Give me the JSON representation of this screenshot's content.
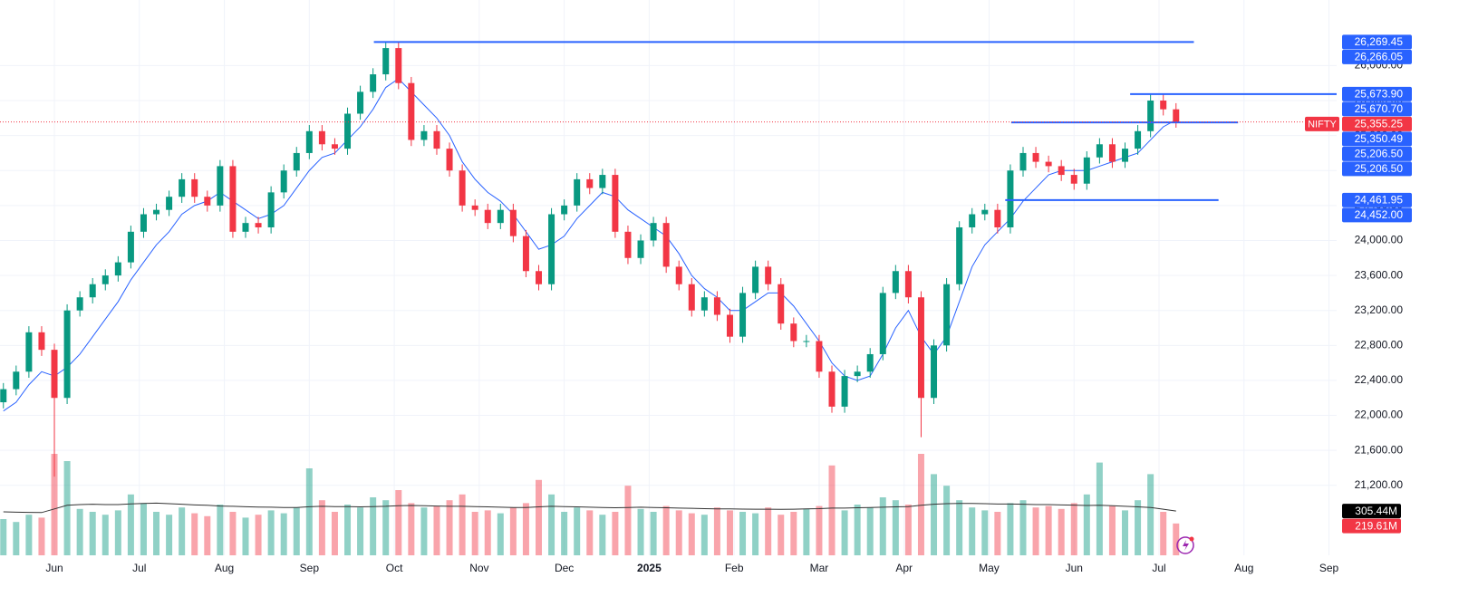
{
  "chart_data": {
    "type": "candlestick",
    "symbol": "NIFTY",
    "up_color": "#089981",
    "down_color": "#f23645",
    "grid": true,
    "x": [
      0.4,
      0.55,
      0.7,
      0.85,
      1,
      1.15,
      1.3,
      1.45,
      1.6,
      1.75,
      1.9,
      2.05,
      2.2,
      2.35,
      2.5,
      2.65,
      2.8,
      2.95,
      3.1,
      3.25,
      3.4,
      3.55,
      3.7,
      3.85,
      4,
      4.15,
      4.3,
      4.45,
      4.6,
      4.75,
      4.9,
      5.05,
      5.2,
      5.35,
      5.5,
      5.65,
      5.8,
      5.95,
      6.1,
      6.25,
      6.4,
      6.55,
      6.7,
      6.85,
      7,
      7.15,
      7.3,
      7.45,
      7.6,
      7.75,
      7.9,
      8.05,
      8.2,
      8.35,
      8.5,
      8.65,
      8.8,
      8.95,
      9.1,
      9.25,
      9.4,
      9.55,
      9.7,
      9.85,
      10,
      10.15,
      10.3,
      10.45,
      10.6,
      10.75,
      10.9,
      11.05,
      11.2,
      11.35,
      11.5,
      11.65,
      11.8,
      11.95,
      12.1,
      12.25,
      12.4,
      12.55,
      12.7,
      12.85,
      13,
      13.15,
      13.3,
      13.45,
      13.6,
      13.75,
      13.9,
      14.05,
      14.2
    ],
    "open": [
      22150,
      22300,
      22500,
      22950,
      22750,
      22200,
      23200,
      23350,
      23500,
      23600,
      23750,
      24100,
      24300,
      24350,
      24500,
      24700,
      24500,
      24400,
      24850,
      24100,
      24200,
      24150,
      24550,
      24800,
      25000,
      25250,
      25100,
      25050,
      25450,
      25700,
      25900,
      26200,
      25800,
      25150,
      25250,
      25050,
      24800,
      24400,
      24350,
      24200,
      24350,
      24050,
      23650,
      23500,
      24300,
      24400,
      24700,
      24600,
      24750,
      24100,
      23800,
      24000,
      24200,
      23700,
      23500,
      23200,
      23350,
      23150,
      22900,
      23400,
      23700,
      23500,
      23050,
      22850,
      22850,
      22500,
      22100,
      22450,
      22500,
      22700,
      23400,
      23650,
      23350,
      22200,
      22800,
      23500,
      24150,
      24300,
      24350,
      24150,
      24800,
      25000,
      24900,
      24850,
      24750,
      24650,
      24950,
      25100,
      24900,
      25050,
      25250,
      25600,
      25500
    ],
    "high": [
      22370,
      22570,
      23020,
      23020,
      22820,
      23270,
      23420,
      23570,
      23670,
      23820,
      24170,
      24370,
      24420,
      24570,
      24770,
      24770,
      24570,
      24920,
      24920,
      24270,
      24270,
      24620,
      24870,
      25070,
      25320,
      25320,
      25170,
      25520,
      25770,
      25970,
      26277,
      26270,
      25870,
      25320,
      25320,
      25120,
      24870,
      24470,
      24420,
      24420,
      24420,
      24120,
      23720,
      24370,
      24470,
      24770,
      24770,
      24820,
      24820,
      24170,
      24070,
      24270,
      24270,
      23770,
      23570,
      23420,
      23420,
      23220,
      23470,
      23770,
      23770,
      23570,
      23120,
      22920,
      22920,
      22570,
      22520,
      22570,
      22770,
      23470,
      23720,
      23720,
      23420,
      22870,
      23570,
      24220,
      24370,
      24420,
      24420,
      24870,
      25070,
      25070,
      24970,
      24920,
      24820,
      25020,
      25170,
      25170,
      25120,
      25320,
      25670,
      25670,
      25570
    ],
    "low": [
      22080,
      22230,
      22430,
      22680,
      21300,
      22130,
      23130,
      23280,
      23430,
      23530,
      23680,
      24030,
      24230,
      24280,
      24430,
      24430,
      24330,
      24330,
      24030,
      24030,
      24080,
      24080,
      24480,
      24730,
      24930,
      25030,
      24980,
      24980,
      25380,
      25630,
      25830,
      25730,
      25080,
      25080,
      24980,
      24730,
      24330,
      24280,
      24130,
      24130,
      23980,
      23580,
      23430,
      23430,
      24230,
      24330,
      24530,
      24530,
      24030,
      23730,
      23730,
      23930,
      23630,
      23430,
      23130,
      23130,
      23080,
      22830,
      22830,
      23330,
      23430,
      22980,
      22780,
      22780,
      22430,
      22030,
      22030,
      22380,
      22430,
      22630,
      23330,
      23280,
      21750,
      22130,
      22730,
      23430,
      24080,
      24230,
      24080,
      24080,
      24730,
      24830,
      24780,
      24680,
      24580,
      24580,
      24880,
      24830,
      24830,
      24980,
      25180,
      25430,
      25290
    ],
    "close": [
      22300,
      22500,
      22950,
      22750,
      22200,
      23200,
      23350,
      23500,
      23600,
      23750,
      24100,
      24300,
      24350,
      24500,
      24700,
      24500,
      24400,
      24850,
      24100,
      24200,
      24150,
      24550,
      24800,
      25000,
      25250,
      25100,
      25050,
      25450,
      25700,
      25900,
      26200,
      25800,
      25150,
      25250,
      25050,
      24800,
      24400,
      24350,
      24200,
      24350,
      24050,
      23650,
      23500,
      24300,
      24400,
      24700,
      24600,
      24750,
      24100,
      23800,
      24000,
      24200,
      23700,
      23500,
      23200,
      23350,
      23150,
      22900,
      23400,
      23700,
      23500,
      23050,
      22850,
      22850,
      22500,
      22100,
      22450,
      22500,
      22700,
      23400,
      23650,
      23350,
      22200,
      22800,
      23500,
      24150,
      24300,
      24350,
      24150,
      24800,
      25000,
      24900,
      24850,
      24750,
      24650,
      24950,
      25100,
      24900,
      25050,
      25250,
      25600,
      25500,
      25355
    ],
    "ma": {
      "color": "#2962ff",
      "values": [
        22050,
        22150,
        22350,
        22500,
        22450,
        22550,
        22700,
        22900,
        23100,
        23300,
        23550,
        23750,
        23950,
        24100,
        24300,
        24400,
        24450,
        24550,
        24450,
        24350,
        24250,
        24300,
        24400,
        24600,
        24800,
        24950,
        25000,
        25150,
        25300,
        25500,
        25750,
        25850,
        25700,
        25550,
        25400,
        25200,
        24900,
        24700,
        24550,
        24450,
        24300,
        24100,
        23900,
        23950,
        24050,
        24250,
        24400,
        24550,
        24500,
        24350,
        24250,
        24150,
        24050,
        23850,
        23600,
        23450,
        23350,
        23200,
        23200,
        23300,
        23400,
        23400,
        23250,
        23050,
        22850,
        22600,
        22450,
        22400,
        22450,
        22700,
        23000,
        23200,
        22900,
        22700,
        22900,
        23300,
        23700,
        23950,
        24100,
        24250,
        24450,
        24600,
        24750,
        24800,
        24800,
        24800,
        24850,
        24900,
        24950,
        25000,
        25150,
        25300,
        25380
      ]
    },
    "volume": {
      "values": [
        250,
        230,
        280,
        260,
        700,
        650,
        320,
        300,
        280,
        310,
        420,
        360,
        300,
        280,
        330,
        290,
        270,
        350,
        300,
        260,
        280,
        310,
        290,
        330,
        600,
        380,
        300,
        350,
        330,
        400,
        380,
        450,
        360,
        330,
        340,
        380,
        420,
        300,
        310,
        290,
        330,
        360,
        520,
        420,
        300,
        330,
        310,
        280,
        300,
        480,
        320,
        300,
        340,
        310,
        290,
        280,
        330,
        310,
        300,
        290,
        330,
        280,
        300,
        320,
        340,
        620,
        310,
        350,
        330,
        400,
        380,
        350,
        700,
        560,
        480,
        380,
        330,
        310,
        300,
        360,
        380,
        330,
        340,
        320,
        360,
        420,
        640,
        340,
        310,
        380,
        560,
        300,
        219.61
      ],
      "ma_values": [
        300,
        298,
        296,
        295,
        320,
        345,
        350,
        352,
        350,
        350,
        355,
        358,
        360,
        356,
        352,
        348,
        345,
        340,
        338,
        335,
        333,
        332,
        330,
        330,
        335,
        338,
        336,
        336,
        334,
        336,
        338,
        342,
        344,
        342,
        340,
        338,
        338,
        336,
        334,
        332,
        330,
        330,
        334,
        338,
        336,
        334,
        332,
        330,
        328,
        330,
        332,
        330,
        328,
        326,
        324,
        322,
        320,
        320,
        319,
        318,
        318,
        317,
        318,
        320,
        322,
        326,
        326,
        328,
        330,
        332,
        334,
        336,
        345,
        352,
        356,
        358,
        358,
        356,
        354,
        354,
        352,
        350,
        350,
        348,
        346,
        344,
        345,
        342,
        338,
        334,
        330,
        318,
        305.44
      ],
      "ma_color": "#333333"
    },
    "volume_ylim": [
      0,
      900
    ],
    "volume_labels": [
      {
        "value": 305.44,
        "label": "305.44M",
        "color": "#000000"
      },
      {
        "value": 219.61,
        "label": "219.61M",
        "color": "#f23645"
      }
    ],
    "xlim": [
      0.36,
      16.09
    ],
    "xticks": [
      {
        "value": 1,
        "label": "Jun"
      },
      {
        "value": 2,
        "label": "Jul"
      },
      {
        "value": 3,
        "label": "Aug"
      },
      {
        "value": 4,
        "label": "Sep"
      },
      {
        "value": 5,
        "label": "Oct"
      },
      {
        "value": 6,
        "label": "Nov"
      },
      {
        "value": 7,
        "label": "Dec"
      },
      {
        "value": 8,
        "label": "2025"
      },
      {
        "value": 9,
        "label": "Feb"
      },
      {
        "value": 10,
        "label": "Mar"
      },
      {
        "value": 11,
        "label": "Apr"
      },
      {
        "value": 12,
        "label": "May"
      },
      {
        "value": 13,
        "label": "Jun"
      },
      {
        "value": 14,
        "label": "Jul"
      },
      {
        "value": 15,
        "label": "Aug"
      },
      {
        "value": 16,
        "label": "Sep"
      }
    ],
    "ylim": [
      20400,
      26750
    ],
    "yticks": [
      {
        "value": 21200,
        "label": "21,200.00"
      },
      {
        "value": 21600,
        "label": "21,600.00"
      },
      {
        "value": 22000,
        "label": "22,000.00"
      },
      {
        "value": 22400,
        "label": "22,400.00"
      },
      {
        "value": 22800,
        "label": "22,800.00"
      },
      {
        "value": 23200,
        "label": "23,200.00"
      },
      {
        "value": 23600,
        "label": "23,600.00"
      },
      {
        "value": 24000,
        "label": "24,000.00"
      },
      {
        "value": 24400,
        "label": "24,400.00"
      },
      {
        "value": 24800,
        "label": "24,800.00"
      },
      {
        "value": 25200,
        "label": "25,200.00"
      },
      {
        "value": 25600,
        "label": "25,600.00"
      },
      {
        "value": 26000,
        "label": "26,000.00"
      }
    ],
    "levels": [
      {
        "value": 26269.45,
        "x": [
          4.76,
          14.41
        ],
        "color": "#2962ff"
      },
      {
        "value": 25673.9,
        "x": [
          13.66,
          16.09
        ],
        "color": "#2962ff"
      },
      {
        "value": 25350.49,
        "x": [
          12.26,
          14.93
        ],
        "color": "#2962ff"
      },
      {
        "value": 24461.95,
        "x": [
          12.19,
          14.7
        ],
        "color": "#2962ff"
      }
    ],
    "last_price": {
      "value": 25355.25,
      "label": "25,355.25",
      "color": "#f23645"
    },
    "price_labels": [
      {
        "value": 26269.45,
        "label": "26,269.45",
        "color": "#2962ff"
      },
      {
        "value": 26266.05,
        "label": "26,266.05",
        "color": "#2962ff"
      },
      {
        "value": 25673.9,
        "label": "25,673.90",
        "color": "#2962ff"
      },
      {
        "value": 25670.7,
        "label": "25,670.70",
        "color": "#2962ff"
      },
      {
        "value": 25350.49,
        "label": "25,350.49",
        "color": "#2962ff"
      },
      {
        "value": 25206.5,
        "label": "25,206.50",
        "color": "#2962ff"
      },
      {
        "value": 25206.5,
        "label": "25,206.50",
        "color": "#2962ff"
      },
      {
        "value": 24461.95,
        "label": "24,461.95",
        "color": "#2962ff"
      },
      {
        "value": 24452,
        "label": "24,452.00",
        "color": "#2962ff"
      }
    ]
  }
}
